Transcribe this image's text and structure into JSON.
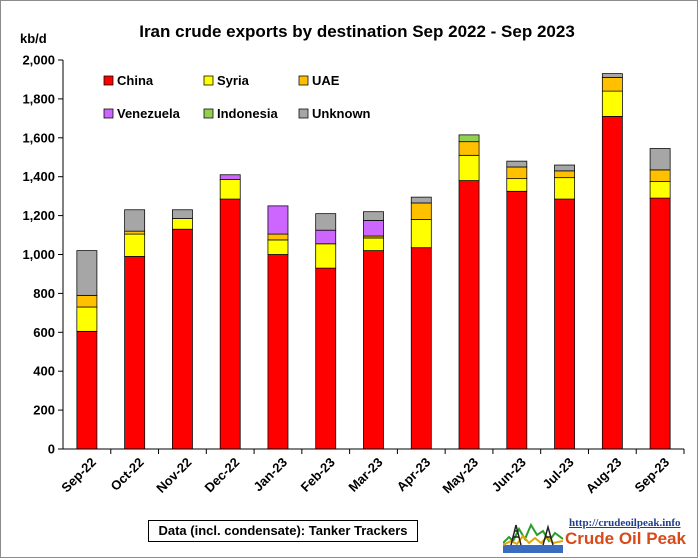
{
  "chart_data": {
    "type": "bar",
    "stacked": true,
    "title": "Iran crude exports by destination  Sep 2022 - Sep 2023",
    "ylabel": "kb/d",
    "xlabel": "",
    "ylim": [
      0,
      2000
    ],
    "yticks": [
      0,
      200,
      400,
      600,
      800,
      1000,
      1200,
      1400,
      1600,
      1800,
      2000
    ],
    "ytick_labels": [
      "0",
      "200",
      "400",
      "600",
      "800",
      "1,000",
      "1,200",
      "1,400",
      "1,600",
      "1,800",
      "2,000"
    ],
    "grid": false,
    "legend_position": "top-left",
    "categories": [
      "Sep-22",
      "Oct-22",
      "Nov-22",
      "Dec-22",
      "Jan-23",
      "Feb-23",
      "Mar-23",
      "Apr-23",
      "May-23",
      "Jun-23",
      "Jul-23",
      "Aug-23",
      "Sep-23"
    ],
    "series": [
      {
        "name": "China",
        "color": "#ff0000",
        "values": [
          605,
          990,
          1130,
          1285,
          1000,
          930,
          1020,
          1035,
          1380,
          1325,
          1285,
          1710,
          1290
        ]
      },
      {
        "name": "Syria",
        "color": "#ffff00",
        "values": [
          125,
          115,
          55,
          100,
          75,
          125,
          65,
          145,
          130,
          65,
          110,
          130,
          85
        ]
      },
      {
        "name": "UAE",
        "color": "#ffc000",
        "values": [
          60,
          15,
          0,
          0,
          30,
          0,
          10,
          85,
          70,
          60,
          35,
          70,
          60
        ]
      },
      {
        "name": "Venezuela",
        "color": "#cc66ff",
        "values": [
          0,
          0,
          0,
          25,
          145,
          70,
          80,
          0,
          0,
          0,
          0,
          0,
          0
        ]
      },
      {
        "name": "Indonesia",
        "color": "#92d050",
        "values": [
          0,
          0,
          0,
          0,
          0,
          0,
          0,
          0,
          35,
          0,
          0,
          0,
          0
        ]
      },
      {
        "name": "Unknown",
        "color": "#a6a6a6",
        "values": [
          230,
          110,
          45,
          0,
          0,
          85,
          45,
          30,
          0,
          30,
          30,
          20,
          110
        ]
      }
    ]
  },
  "source_note": "Data (incl. condensate): Tanker Trackers",
  "logo": {
    "url": "http://crudeoilpeak.info",
    "name": "Crude Oil Peak"
  }
}
